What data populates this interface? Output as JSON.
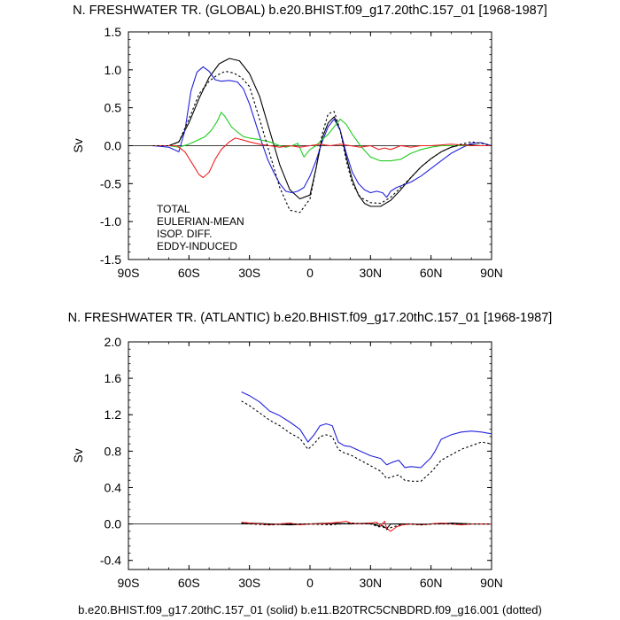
{
  "colors": {
    "total": "#000000",
    "eulerian": "#2222dd",
    "isop": "#22cc22",
    "eddy": "#ee2222"
  },
  "chart_data": [
    {
      "id": "global",
      "type": "line",
      "title": "N. FRESHWATER TR. (GLOBAL) b.e20.BHIST.f09_g17.20thC.157_01 [1968-1987]",
      "ylabel": "Sv",
      "xlim": [
        -90,
        90
      ],
      "ylim": [
        -1.5,
        1.5
      ],
      "xticks": [
        {
          "v": -90,
          "label": "90S"
        },
        {
          "v": -60,
          "label": "60S"
        },
        {
          "v": -30,
          "label": "30S"
        },
        {
          "v": 0,
          "label": "0"
        },
        {
          "v": 30,
          "label": "30N"
        },
        {
          "v": 60,
          "label": "60N"
        },
        {
          "v": 90,
          "label": "90N"
        }
      ],
      "yticks": [
        {
          "v": -1.5,
          "label": "-1.5"
        },
        {
          "v": -1.0,
          "label": "-1.0"
        },
        {
          "v": -0.5,
          "label": "-0.5"
        },
        {
          "v": 0.0,
          "label": "0.0"
        },
        {
          "v": 0.5,
          "label": "0.5"
        },
        {
          "v": 1.0,
          "label": "1.0"
        },
        {
          "v": 1.5,
          "label": "1.5"
        }
      ],
      "zero_line": true,
      "legend": [
        "TOTAL",
        "EULERIAN-MEAN",
        "ISOP. DIFF.",
        "EDDY-INDUCED"
      ],
      "series": [
        {
          "name": "TOTAL",
          "color": "#000000",
          "dash": false,
          "x": [
            -78,
            -70,
            -65,
            -60,
            -55,
            -50,
            -45,
            -40,
            -35,
            -30,
            -25,
            -20,
            -15,
            -10,
            -5,
            0,
            3,
            6,
            9,
            12,
            15,
            18,
            21,
            24,
            27,
            30,
            35,
            40,
            45,
            50,
            55,
            60,
            65,
            70,
            75,
            80,
            85,
            90
          ],
          "y": [
            0.0,
            0.0,
            0.05,
            0.3,
            0.62,
            0.9,
            1.08,
            1.15,
            1.12,
            0.95,
            0.65,
            0.2,
            -0.25,
            -0.58,
            -0.7,
            -0.65,
            -0.3,
            0.1,
            0.3,
            0.38,
            0.2,
            -0.15,
            -0.45,
            -0.65,
            -0.76,
            -0.8,
            -0.8,
            -0.72,
            -0.58,
            -0.42,
            -0.28,
            -0.17,
            -0.08,
            -0.02,
            0.01,
            0.01,
            0.0,
            0.0
          ]
        },
        {
          "name": "EULERIAN-MEAN",
          "color": "#2222dd",
          "dash": false,
          "x": [
            -78,
            -70,
            -65,
            -62,
            -59,
            -56,
            -53,
            -50,
            -47,
            -44,
            -40,
            -36,
            -33,
            -30,
            -27,
            -24,
            -21,
            -18,
            -15,
            -12,
            -9,
            -6,
            -3,
            0,
            3,
            6,
            9,
            12,
            15,
            18,
            21,
            24,
            27,
            30,
            33,
            36,
            38,
            40,
            43,
            46,
            50,
            55,
            60,
            65,
            70,
            75,
            80,
            85,
            90
          ],
          "y": [
            0.0,
            -0.02,
            -0.08,
            0.2,
            0.72,
            0.97,
            1.04,
            0.98,
            0.87,
            0.85,
            0.86,
            0.84,
            0.75,
            0.55,
            0.3,
            0.05,
            -0.18,
            -0.35,
            -0.5,
            -0.6,
            -0.62,
            -0.6,
            -0.55,
            -0.4,
            -0.2,
            0.05,
            0.25,
            0.35,
            0.2,
            -0.1,
            -0.35,
            -0.5,
            -0.58,
            -0.62,
            -0.6,
            -0.62,
            -0.68,
            -0.6,
            -0.55,
            -0.52,
            -0.48,
            -0.4,
            -0.3,
            -0.2,
            -0.1,
            -0.03,
            0.03,
            0.04,
            0.0
          ]
        },
        {
          "name": "ISOP. DIFF.",
          "color": "#22cc22",
          "dash": false,
          "x": [
            -78,
            -70,
            -65,
            -60,
            -55,
            -52,
            -49,
            -46,
            -44,
            -42,
            -39,
            -36,
            -33,
            -30,
            -25,
            -20,
            -15,
            -12,
            -9,
            -6,
            -3,
            0,
            3,
            6,
            9,
            12,
            15,
            18,
            21,
            25,
            30,
            35,
            40,
            45,
            50,
            55,
            60,
            65,
            70,
            80,
            90
          ],
          "y": [
            0.0,
            0.0,
            -0.02,
            0.02,
            0.08,
            0.12,
            0.2,
            0.32,
            0.44,
            0.38,
            0.25,
            0.18,
            0.12,
            0.1,
            0.08,
            0.05,
            0.0,
            -0.02,
            0.0,
            0.03,
            -0.15,
            -0.05,
            0.0,
            0.08,
            0.15,
            0.25,
            0.35,
            0.28,
            0.15,
            0.0,
            -0.15,
            -0.2,
            -0.2,
            -0.18,
            -0.1,
            -0.05,
            -0.02,
            0.0,
            0.0,
            0.0,
            0.0
          ]
        },
        {
          "name": "EDDY-INDUCED",
          "color": "#ee2222",
          "dash": false,
          "x": [
            -78,
            -70,
            -66,
            -62,
            -58,
            -55,
            -53,
            -50,
            -47,
            -44,
            -40,
            -37,
            -34,
            -30,
            -25,
            -20,
            -15,
            -10,
            -5,
            0,
            5,
            10,
            15,
            20,
            25,
            30,
            34,
            37,
            40,
            45,
            50,
            55,
            60,
            70,
            80,
            90
          ],
          "y": [
            0.0,
            0.0,
            0.0,
            -0.08,
            -0.25,
            -0.38,
            -0.42,
            -0.35,
            -0.18,
            -0.05,
            0.05,
            0.1,
            0.08,
            0.05,
            0.02,
            0.0,
            -0.02,
            0.0,
            -0.02,
            0.0,
            0.02,
            0.0,
            0.02,
            0.0,
            -0.02,
            0.0,
            -0.05,
            -0.03,
            -0.05,
            0.0,
            -0.02,
            0.0,
            0.0,
            0.02,
            0.0,
            0.0
          ]
        },
        {
          "name": "TOTAL (dotted)",
          "color": "#000000",
          "dash": true,
          "x": [
            -78,
            -70,
            -65,
            -60,
            -55,
            -50,
            -46,
            -42,
            -38,
            -34,
            -30,
            -25,
            -20,
            -15,
            -10,
            -5,
            0,
            3,
            6,
            9,
            12,
            15,
            18,
            21,
            25,
            30,
            35,
            40,
            45,
            50,
            55,
            60,
            65,
            70,
            75,
            80,
            85,
            90
          ],
          "y": [
            0.0,
            0.0,
            0.05,
            0.35,
            0.68,
            0.85,
            0.93,
            0.98,
            0.96,
            0.9,
            0.78,
            0.35,
            -0.1,
            -0.55,
            -0.85,
            -0.88,
            -0.7,
            -0.3,
            0.15,
            0.42,
            0.45,
            0.2,
            -0.2,
            -0.5,
            -0.68,
            -0.75,
            -0.76,
            -0.68,
            -0.55,
            -0.42,
            -0.28,
            -0.17,
            -0.08,
            -0.02,
            0.02,
            0.05,
            0.03,
            0.0
          ]
        }
      ]
    },
    {
      "id": "atlantic",
      "type": "line",
      "title": "N. FRESHWATER TR. (ATLANTIC) b.e20.BHIST.f09_g17.20thC.157_01 [1968-1987]",
      "ylabel": "Sv",
      "xlim": [
        -90,
        90
      ],
      "ylim": [
        -0.5,
        2.0
      ],
      "xticks": [
        {
          "v": -90,
          "label": "90S"
        },
        {
          "v": -60,
          "label": "60S"
        },
        {
          "v": -30,
          "label": "30S"
        },
        {
          "v": 0,
          "label": "0"
        },
        {
          "v": 30,
          "label": "30N"
        },
        {
          "v": 60,
          "label": "60N"
        },
        {
          "v": 90,
          "label": "90N"
        }
      ],
      "yticks": [
        {
          "v": -0.4,
          "label": "-0.4"
        },
        {
          "v": 0.0,
          "label": "0.0"
        },
        {
          "v": 0.4,
          "label": "0.4"
        },
        {
          "v": 0.8,
          "label": "0.8"
        },
        {
          "v": 1.2,
          "label": "1.2"
        },
        {
          "v": 1.6,
          "label": "1.6"
        },
        {
          "v": 2.0,
          "label": "2.0"
        }
      ],
      "zero_line": true,
      "series": [
        {
          "name": "EULERIAN-MEAN",
          "color": "#2222dd",
          "dash": false,
          "x": [
            -34,
            -30,
            -25,
            -20,
            -15,
            -10,
            -5,
            -1,
            2,
            5,
            8,
            11,
            14,
            17,
            20,
            25,
            30,
            35,
            38,
            41,
            44,
            47,
            50,
            55,
            60,
            62,
            65,
            70,
            75,
            80,
            85,
            90
          ],
          "y": [
            1.45,
            1.41,
            1.34,
            1.24,
            1.19,
            1.12,
            1.04,
            0.9,
            0.98,
            1.08,
            1.1,
            1.08,
            0.9,
            0.86,
            0.85,
            0.8,
            0.75,
            0.72,
            0.65,
            0.68,
            0.7,
            0.62,
            0.63,
            0.62,
            0.73,
            0.8,
            0.93,
            0.98,
            1.01,
            1.02,
            1.01,
            0.99
          ]
        },
        {
          "name": "TOTAL",
          "color": "#000000",
          "dash": false,
          "x": [
            -34,
            -30,
            -20,
            -10,
            0,
            10,
            20,
            30,
            34,
            36,
            38,
            40,
            45,
            50,
            55,
            60,
            70,
            80,
            90
          ],
          "y": [
            0.0,
            0.01,
            0.0,
            -0.01,
            0.0,
            0.01,
            0.0,
            0.01,
            -0.02,
            -0.02,
            -0.05,
            0.0,
            0.0,
            0.0,
            -0.01,
            0.0,
            0.01,
            0.0,
            0.0
          ]
        },
        {
          "name": "EDDY-INDUCED",
          "color": "#ee2222",
          "dash": false,
          "x": [
            -34,
            -30,
            -25,
            -20,
            -15,
            -10,
            -5,
            0,
            5,
            10,
            15,
            18,
            20,
            25,
            30,
            33,
            35,
            37,
            38,
            40,
            43,
            46,
            50,
            55,
            60,
            65,
            70,
            75,
            80,
            85,
            90
          ],
          "y": [
            0.02,
            0.01,
            0.0,
            -0.01,
            0.0,
            0.01,
            -0.01,
            0.0,
            0.0,
            0.01,
            0.02,
            0.03,
            0.01,
            0.0,
            0.01,
            0.02,
            -0.02,
            0.03,
            -0.05,
            -0.08,
            -0.03,
            -0.01,
            0.0,
            -0.01,
            0.0,
            0.01,
            0.0,
            -0.01,
            0.0,
            0.0,
            0.0
          ]
        },
        {
          "name": "EULERIAN-MEAN (dotted)",
          "color": "#000000",
          "dash": true,
          "x": [
            -34,
            -30,
            -25,
            -20,
            -15,
            -10,
            -5,
            -1,
            2,
            5,
            8,
            11,
            14,
            17,
            20,
            25,
            30,
            35,
            38,
            41,
            44,
            47,
            50,
            55,
            60,
            62,
            65,
            70,
            75,
            80,
            85,
            90
          ],
          "y": [
            1.35,
            1.3,
            1.22,
            1.14,
            1.08,
            1.0,
            0.94,
            0.82,
            0.88,
            0.96,
            0.98,
            0.96,
            0.82,
            0.78,
            0.76,
            0.7,
            0.64,
            0.58,
            0.5,
            0.52,
            0.54,
            0.48,
            0.47,
            0.47,
            0.57,
            0.62,
            0.7,
            0.76,
            0.82,
            0.86,
            0.9,
            0.88
          ]
        },
        {
          "name": "EDDY (dotted)",
          "color": "#000000",
          "dash": true,
          "x": [
            -34,
            -30,
            -20,
            -10,
            0,
            10,
            20,
            30,
            34,
            36,
            38,
            40,
            43,
            46,
            50,
            55,
            60,
            70,
            80,
            90
          ],
          "y": [
            0.01,
            0.0,
            -0.01,
            0.0,
            0.0,
            -0.01,
            0.01,
            0.0,
            -0.03,
            -0.03,
            -0.06,
            -0.04,
            -0.02,
            0.0,
            0.0,
            -0.01,
            0.0,
            0.0,
            0.0,
            0.0
          ]
        }
      ]
    }
  ],
  "footer": "b.e20.BHIST.f09_g17.20thC.157_01 (solid) b.e11.B20TRC5CNBDRD.f09_g16.001 (dotted)"
}
